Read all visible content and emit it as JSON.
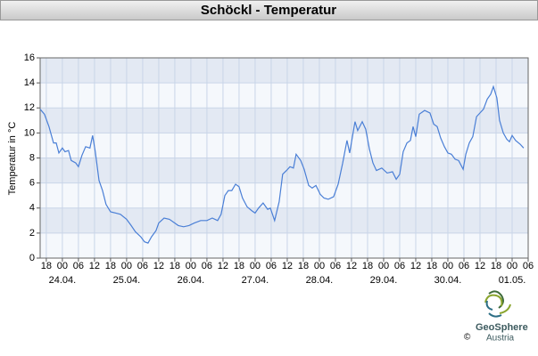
{
  "chart_data": {
    "type": "line",
    "title": "Schöckl - Temperatur",
    "ylabel": "Temperatur in °C",
    "x": [
      -8.3,
      -6.7,
      -5,
      -3.3,
      -2.3,
      -1.3,
      0,
      1,
      2.3,
      3.3,
      5,
      6,
      7.3,
      8.7,
      10.3,
      11.3,
      12.3,
      13.7,
      15,
      16.3,
      18,
      20,
      21.7,
      24,
      25.7,
      27.3,
      29.3,
      30.7,
      32,
      33.3,
      35,
      36,
      38,
      40,
      42,
      43.3,
      45.3,
      47.3,
      49.3,
      51.7,
      54,
      56,
      58,
      59.3,
      60.7,
      62,
      63.3,
      64.7,
      66,
      67.3,
      69,
      70.7,
      72,
      73.3,
      75,
      76.7,
      77.7,
      79.3,
      81,
      82.3,
      83.7,
      85,
      86.3,
      87.3,
      89,
      90.3,
      92,
      93.3,
      94.7,
      96.3,
      97.7,
      99.3,
      101.3,
      103,
      104.7,
      106.3,
      107.3,
      109.3,
      110.3,
      112,
      113.3,
      114.7,
      116,
      117.3,
      119.3,
      121.3,
      123.3,
      124.7,
      126,
      127.3,
      128.7,
      130,
      131,
      132,
      133.3,
      135.3,
      137.3,
      138.7,
      140,
      141.3,
      142.7,
      144,
      145.3,
      146.7,
      148,
      149.7,
      150.7,
      152,
      153.3,
      154.7,
      156,
      157.3,
      158.7,
      160,
      161,
      162.3,
      163.3,
      164.7,
      166,
      167,
      168,
      169.3,
      171,
      172.3
    ],
    "series": [
      {
        "color": "#4a7fd6",
        "values": [
          11.9,
          11.5,
          10.5,
          9.2,
          9.2,
          8.4,
          8.8,
          8.5,
          8.6,
          7.8,
          7.6,
          7.3,
          8.2,
          8.9,
          8.8,
          9.8,
          8.5,
          6.2,
          5.4,
          4.3,
          3.7,
          3.6,
          3.5,
          3.1,
          2.6,
          2.1,
          1.7,
          1.3,
          1.2,
          1.7,
          2.2,
          2.8,
          3.2,
          3.1,
          2.8,
          2.6,
          2.5,
          2.6,
          2.8,
          3.0,
          3.0,
          3.2,
          3.0,
          3.5,
          5.0,
          5.4,
          5.4,
          5.9,
          5.7,
          4.8,
          4.1,
          3.8,
          3.6,
          4.0,
          4.4,
          3.9,
          4.0,
          3.0,
          4.5,
          6.7,
          7.0,
          7.3,
          7.2,
          8.3,
          7.8,
          7.1,
          5.8,
          5.6,
          5.8,
          5.1,
          4.8,
          4.7,
          4.9,
          5.9,
          7.6,
          9.4,
          8.4,
          10.9,
          10.2,
          10.9,
          10.3,
          8.7,
          7.6,
          7.0,
          7.2,
          6.8,
          6.9,
          6.3,
          6.7,
          8.5,
          9.2,
          9.4,
          10.5,
          9.7,
          11.5,
          11.8,
          11.6,
          10.7,
          10.5,
          9.6,
          8.9,
          8.4,
          8.3,
          7.9,
          7.8,
          7.1,
          8.3,
          9.2,
          9.7,
          11.3,
          11.6,
          11.9,
          12.7,
          13.1,
          13.7,
          12.8,
          11.0,
          10.0,
          9.5,
          9.3,
          9.8,
          9.4,
          9.1,
          8.8
        ]
      }
    ],
    "xlim": [
      -8.3,
      174
    ],
    "ylim": [
      0,
      16
    ],
    "yticks": [
      0,
      2,
      4,
      6,
      8,
      10,
      12,
      14,
      16
    ],
    "xticks": [
      {
        "value": -6,
        "label": "18"
      },
      {
        "value": 0,
        "label": "00"
      },
      {
        "value": 6,
        "label": "06"
      },
      {
        "value": 12,
        "label": "12"
      },
      {
        "value": 18,
        "label": "18"
      },
      {
        "value": 24,
        "label": "00"
      },
      {
        "value": 30,
        "label": "06"
      },
      {
        "value": 36,
        "label": "12"
      },
      {
        "value": 42,
        "label": "18"
      },
      {
        "value": 48,
        "label": "00"
      },
      {
        "value": 54,
        "label": "06"
      },
      {
        "value": 60,
        "label": "12"
      },
      {
        "value": 66,
        "label": "18"
      },
      {
        "value": 72,
        "label": "00"
      },
      {
        "value": 78,
        "label": "06"
      },
      {
        "value": 84,
        "label": "12"
      },
      {
        "value": 90,
        "label": "18"
      },
      {
        "value": 96,
        "label": "00"
      },
      {
        "value": 102,
        "label": "06"
      },
      {
        "value": 108,
        "label": "12"
      },
      {
        "value": 114,
        "label": "18"
      },
      {
        "value": 120,
        "label": "00"
      },
      {
        "value": 126,
        "label": "06"
      },
      {
        "value": 132,
        "label": "12"
      },
      {
        "value": 138,
        "label": "18"
      },
      {
        "value": 144,
        "label": "00"
      },
      {
        "value": 150,
        "label": "06"
      },
      {
        "value": 156,
        "label": "12"
      },
      {
        "value": 162,
        "label": "18"
      },
      {
        "value": 168,
        "label": "00"
      },
      {
        "value": 174,
        "label": "06"
      }
    ],
    "date_labels": [
      {
        "value": 0,
        "label": "24.04."
      },
      {
        "value": 24,
        "label": "25.04."
      },
      {
        "value": 48,
        "label": "26.04."
      },
      {
        "value": 72,
        "label": "27.04."
      },
      {
        "value": 96,
        "label": "28.04."
      },
      {
        "value": 120,
        "label": "29.04."
      },
      {
        "value": 144,
        "label": "30.04."
      },
      {
        "value": 168,
        "label": "01.05."
      }
    ],
    "grid": true
  },
  "brand": {
    "name": "GeoSphere",
    "sub": "Austria",
    "copyright": "©"
  }
}
